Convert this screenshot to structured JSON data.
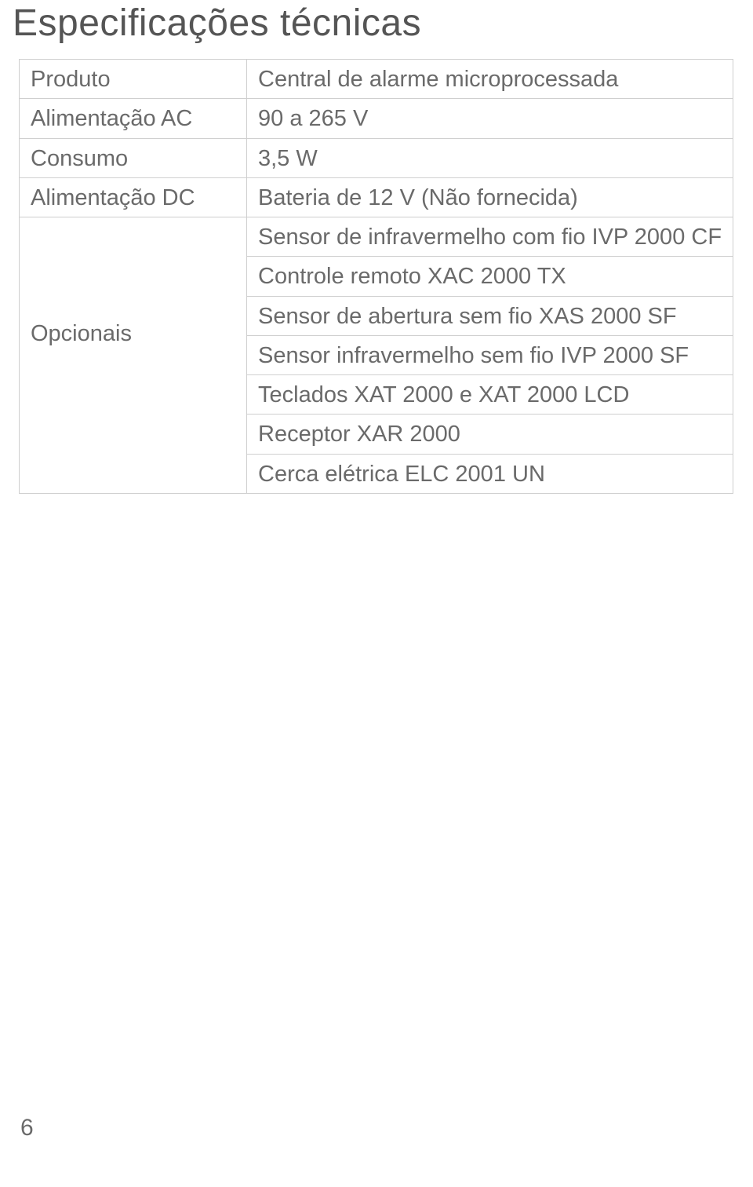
{
  "page": {
    "title": "Especificações técnicas",
    "page_number": "6"
  },
  "table": {
    "rows": [
      {
        "label": "Produto",
        "value": "Central de alarme microprocessada"
      },
      {
        "label": "Alimentação AC",
        "value": "90 a 265 V"
      },
      {
        "label": "Consumo",
        "value": "3,5 W"
      },
      {
        "label": "Alimentação DC",
        "value": "Bateria de 12 V (Não fornecida)"
      }
    ],
    "optional_label": "Opcionais",
    "optional_values": [
      "Sensor de infravermelho com fio IVP 2000 CF",
      "Controle remoto XAC 2000 TX",
      "Sensor de abertura sem fio XAS 2000 SF",
      "Sensor infravermelho sem fio IVP 2000 SF",
      "Teclados XAT 2000 e XAT 2000 LCD",
      "Receptor XAR 2000",
      "Cerca elétrica ELC 2001 UN"
    ]
  },
  "style": {
    "title_color": "#555555",
    "text_color": "#6a6a6a",
    "border_color": "#cfcfcf",
    "background": "#ffffff",
    "title_fontsize": 48,
    "cell_fontsize": 29
  }
}
